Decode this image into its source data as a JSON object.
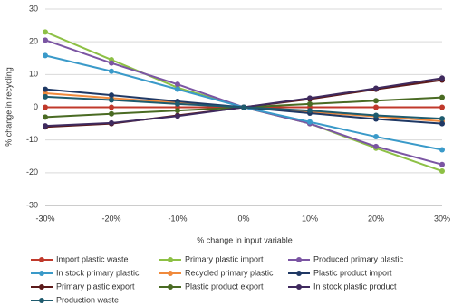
{
  "chart_data": {
    "type": "line",
    "x_label": "% change in input variable",
    "y_label": "% change in recycling",
    "categories": [
      "-30%",
      "-20%",
      "-10%",
      "0%",
      "10%",
      "20%",
      "30%"
    ],
    "ylim": [
      -30,
      30
    ],
    "yticks": [
      -30,
      -20,
      -10,
      0,
      10,
      20,
      30
    ],
    "grid": true,
    "series": [
      {
        "name": "Import plastic waste",
        "color": "#c0392b",
        "values": [
          0,
          0,
          0,
          0,
          0,
          0,
          0
        ]
      },
      {
        "name": "Primary plastic import",
        "color": "#8dc045",
        "values": [
          23,
          14.5,
          6,
          0,
          -5,
          -12.5,
          -19.5
        ]
      },
      {
        "name": "Produced primary plastic",
        "color": "#7b55a3",
        "values": [
          20.5,
          13.5,
          7,
          0,
          -5,
          -12,
          -17.5
        ]
      },
      {
        "name": "In stock primary plastic",
        "color": "#3a9ac9",
        "values": [
          15.8,
          11,
          5.5,
          0,
          -4.5,
          -9,
          -13
        ]
      },
      {
        "name": "Recycled primary plastic",
        "color": "#f08a3c",
        "values": [
          4.3,
          2.8,
          1.4,
          0,
          -1.4,
          -2.8,
          -4.3
        ]
      },
      {
        "name": "Plastic product import",
        "color": "#1f3864",
        "values": [
          5.5,
          3.7,
          1.8,
          0,
          -1.8,
          -3.6,
          -5
        ]
      },
      {
        "name": "Primary plastic export",
        "color": "#5c1a1a",
        "values": [
          -6,
          -5,
          -2.5,
          0,
          2.5,
          5.5,
          8.3
        ]
      },
      {
        "name": "Plastic product export",
        "color": "#4a6b23",
        "values": [
          -3,
          -2,
          -1,
          0,
          1,
          2,
          3
        ]
      },
      {
        "name": "In stock plastic product",
        "color": "#3f2a5e",
        "values": [
          -5.7,
          -4.8,
          -2.7,
          0,
          2.8,
          5.8,
          8.9
        ]
      },
      {
        "name": "Production waste",
        "color": "#1e5b6e",
        "values": [
          3.2,
          2.2,
          1,
          0,
          -1,
          -2.5,
          -3.5
        ]
      }
    ]
  }
}
